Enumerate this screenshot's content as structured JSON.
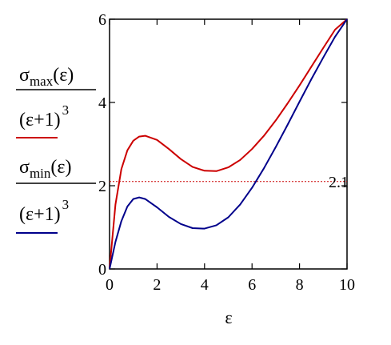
{
  "chart_data": {
    "type": "line",
    "xlabel": "ε",
    "xlim": [
      0,
      10
    ],
    "ylim": [
      0,
      6
    ],
    "x_ticks": [
      "0",
      "2",
      "4",
      "6",
      "8",
      "10"
    ],
    "y_ticks": [
      "0",
      "2",
      "4",
      "6"
    ],
    "y_labels": [
      {
        "numerator": {
          "sigma": "σ",
          "sub": "max",
          "arg": "(ε)"
        },
        "denominator": {
          "base": "(ε+1)",
          "exp": "3"
        },
        "color": "#cc0000"
      },
      {
        "numerator": {
          "sigma": "σ",
          "sub": "min",
          "arg": "(ε)"
        },
        "denominator": {
          "base": "(ε+1)",
          "exp": "3"
        },
        "color": "#00008b"
      }
    ],
    "series": [
      {
        "color": "#cc0000",
        "x": [
          0,
          0.25,
          0.5,
          0.75,
          1.0,
          1.25,
          1.5,
          2.0,
          2.5,
          3.0,
          3.5,
          4.0,
          4.5,
          5.0,
          5.5,
          6.0,
          6.5,
          7.0,
          7.5,
          8.0,
          8.5,
          9.0,
          9.5,
          10.0
        ],
        "values": [
          0,
          1.55,
          2.4,
          2.85,
          3.08,
          3.18,
          3.2,
          3.1,
          2.88,
          2.64,
          2.45,
          2.36,
          2.35,
          2.44,
          2.62,
          2.88,
          3.2,
          3.57,
          3.98,
          4.41,
          4.86,
          5.31,
          5.75,
          6.0
        ]
      },
      {
        "color": "#00008b",
        "x": [
          0,
          0.25,
          0.5,
          0.75,
          1.0,
          1.25,
          1.5,
          2.0,
          2.5,
          3.0,
          3.5,
          4.0,
          4.5,
          5.0,
          5.5,
          6.0,
          6.5,
          7.0,
          7.5,
          8.0,
          8.5,
          9.0,
          9.5,
          10.0
        ],
        "values": [
          0,
          0.65,
          1.15,
          1.5,
          1.68,
          1.72,
          1.68,
          1.48,
          1.25,
          1.08,
          0.98,
          0.97,
          1.05,
          1.24,
          1.55,
          1.95,
          2.42,
          2.93,
          3.47,
          4.02,
          4.56,
          5.08,
          5.58,
          6.0
        ]
      }
    ],
    "reference_line": {
      "y": 2.1,
      "label": "2.1",
      "color": "#cc0000",
      "style": "dotted"
    }
  }
}
